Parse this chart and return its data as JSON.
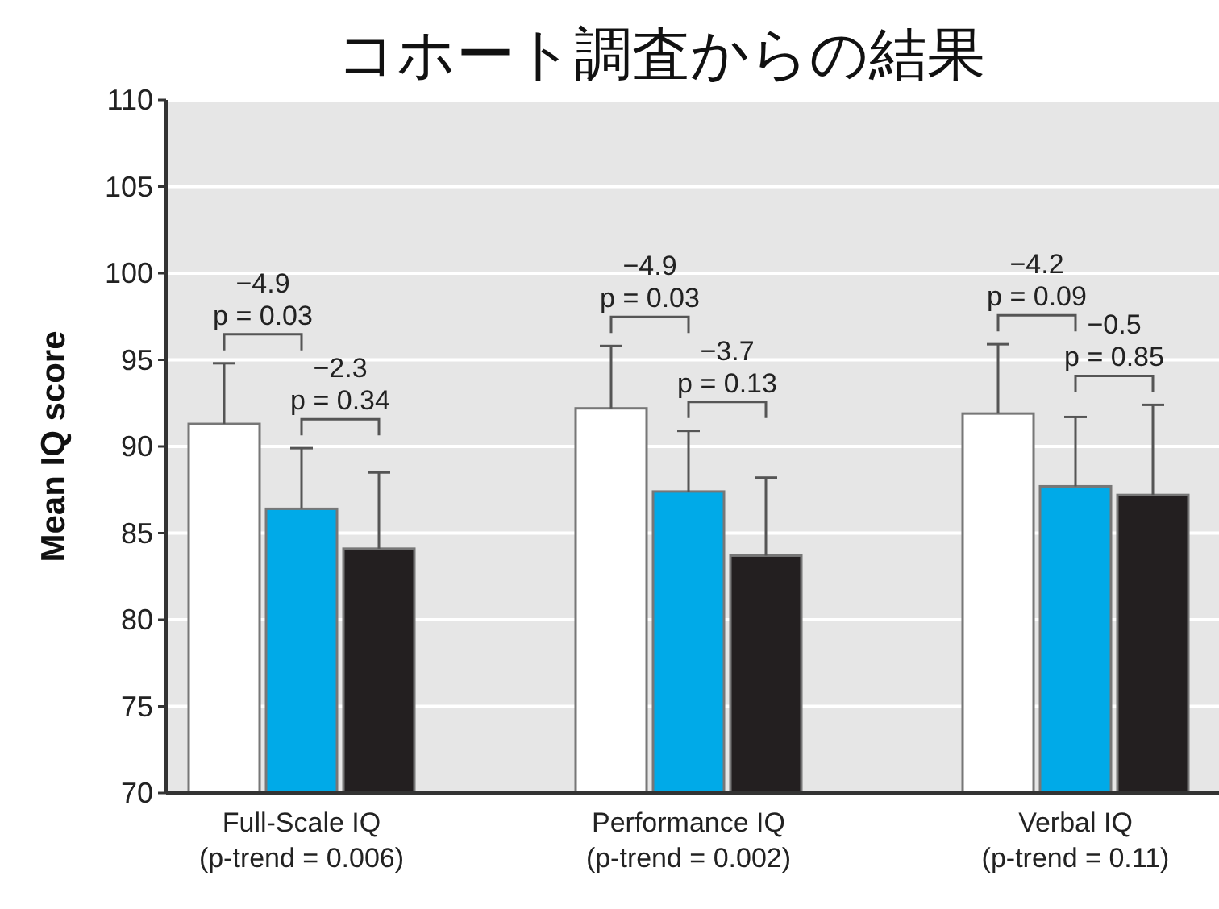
{
  "chart_data": {
    "type": "bar",
    "title": "コホート調査からの結果",
    "ylabel": "Mean IQ score",
    "categories": [
      "Full-Scale IQ\n(p-trend = 0.006)",
      "Performance IQ\n(p-trend = 0.002)",
      "Verbal IQ\n(p-trend = 0.11)"
    ],
    "series": [
      {
        "color": "#ffffff",
        "values": [
          91.3,
          92.2,
          91.9
        ],
        "errors": [
          [
            91.3,
            94.8
          ],
          [
            92.2,
            95.8
          ],
          [
            91.9,
            95.9
          ]
        ]
      },
      {
        "color": "#00aae8",
        "values": [
          86.4,
          87.4,
          87.7
        ],
        "errors": [
          [
            86.4,
            89.9
          ],
          [
            87.4,
            90.9
          ],
          [
            87.7,
            91.7
          ]
        ]
      },
      {
        "color": "#231f20",
        "values": [
          84.1,
          83.7,
          87.2
        ],
        "errors": [
          [
            84.1,
            88.5
          ],
          [
            83.7,
            88.2
          ],
          [
            87.2,
            92.4
          ]
        ]
      }
    ],
    "ylim": [
      70,
      110
    ],
    "yticks": [
      70,
      75,
      80,
      85,
      90,
      95,
      100,
      105,
      110
    ],
    "grid": "y",
    "annotations": [
      "−4.9\np = 0.03",
      "−2.3\np = 0.34",
      "−4.9\np = 0.03",
      "−3.7\np = 0.13",
      "−4.2\np = 0.09",
      "−0.5\np = 0.85"
    ]
  }
}
